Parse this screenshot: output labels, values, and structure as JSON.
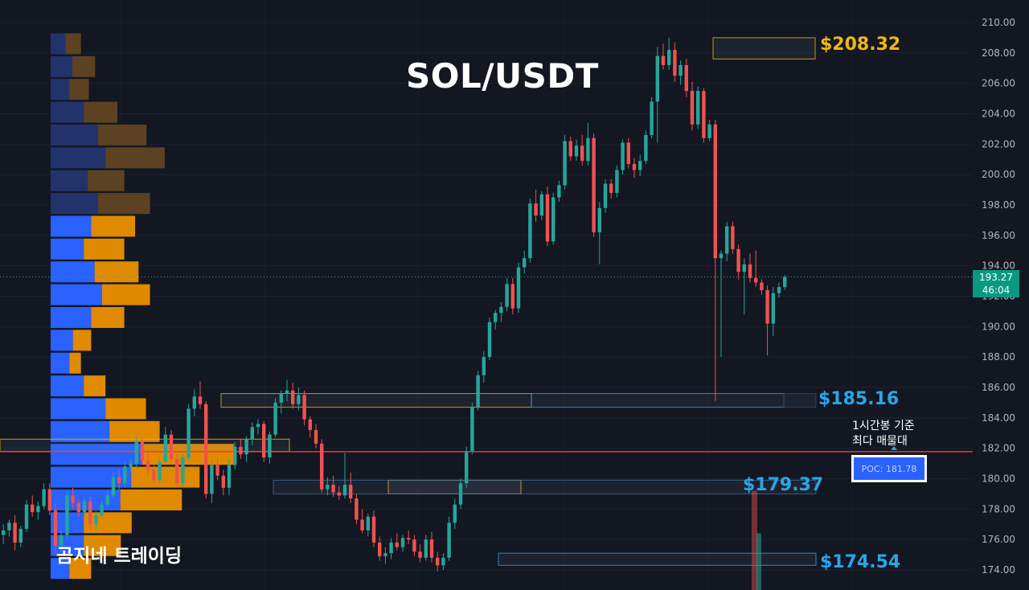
{
  "title": "SOL/USDT",
  "brand": "곰지네 트레이딩",
  "colors": {
    "background": "#131722",
    "up": "#26a69a",
    "down": "#ef5350",
    "vp_buy": "#2962ff",
    "vp_sell": "#e08a00",
    "poc_line": "#e53935",
    "gold": "#f0b90b",
    "blue": "#2aa5e8"
  },
  "levels": [
    {
      "label": "$208.32",
      "price": 208.32,
      "color": "gold"
    },
    {
      "label": "$185.16",
      "price": 185.16,
      "color": "blue"
    },
    {
      "label": "$179.37",
      "price": 179.37,
      "color": "blue"
    },
    {
      "label": "$174.54",
      "price": 174.54,
      "color": "blue"
    }
  ],
  "poc": {
    "note_line1": "1시간봉 기준",
    "note_line2": "최다 매물대",
    "label": "POC: 181.78",
    "price": 181.78
  },
  "current": {
    "price": "193.27",
    "countdown": "46:04",
    "value": 193.27
  },
  "chart_data": {
    "type": "candlestick",
    "title": "SOL/USDT",
    "y_axis": {
      "ylim": [
        173.2,
        211
      ],
      "ticks": [
        "174.00",
        "176.00",
        "178.00",
        "180.00",
        "182.00",
        "184.00",
        "186.00",
        "188.00",
        "190.00",
        "192.00",
        "194.00",
        "196.00",
        "198.00",
        "200.00",
        "202.00",
        "204.00",
        "206.00",
        "208.00",
        "210.00"
      ]
    },
    "candles": [
      [
        176.3,
        177.0,
        175.7,
        176.6
      ],
      [
        176.6,
        177.3,
        176.2,
        177.1
      ],
      [
        177.1,
        177.6,
        175.3,
        175.8
      ],
      [
        175.8,
        176.9,
        175.5,
        176.7
      ],
      [
        176.7,
        178.6,
        176.5,
        178.3
      ],
      [
        178.3,
        178.9,
        177.5,
        177.8
      ],
      [
        177.8,
        178.5,
        177.3,
        178.2
      ],
      [
        178.2,
        179.7,
        178.0,
        179.3
      ],
      [
        179.3,
        179.7,
        177.6,
        177.9
      ],
      [
        177.9,
        178.4,
        175.1,
        175.6
      ],
      [
        175.6,
        176.6,
        175.2,
        176.3
      ],
      [
        176.3,
        179.2,
        176.1,
        178.9
      ],
      [
        178.9,
        179.4,
        178.0,
        178.4
      ],
      [
        178.4,
        178.6,
        177.5,
        177.8
      ],
      [
        177.8,
        178.7,
        177.6,
        178.5
      ],
      [
        178.5,
        178.8,
        176.6,
        177.0
      ],
      [
        177.0,
        177.9,
        176.6,
        177.6
      ],
      [
        177.6,
        178.6,
        177.4,
        178.3
      ],
      [
        178.3,
        179.2,
        178.1,
        178.9
      ],
      [
        178.9,
        180.4,
        178.7,
        180.1
      ],
      [
        180.1,
        180.6,
        179.3,
        179.7
      ],
      [
        179.7,
        181.1,
        179.4,
        180.8
      ],
      [
        180.8,
        181.3,
        180.5,
        181.0
      ],
      [
        181.0,
        182.8,
        180.7,
        182.4
      ],
      [
        182.4,
        182.7,
        180.9,
        181.2
      ],
      [
        181.2,
        181.7,
        180.2,
        180.6
      ],
      [
        180.6,
        180.9,
        179.6,
        179.9
      ],
      [
        179.9,
        181.3,
        179.7,
        181.1
      ],
      [
        181.1,
        183.4,
        180.9,
        182.9
      ],
      [
        182.9,
        183.2,
        181.0,
        181.3
      ],
      [
        181.3,
        181.6,
        179.4,
        179.7
      ],
      [
        179.7,
        181.6,
        179.5,
        181.4
      ],
      [
        181.4,
        184.9,
        181.2,
        184.6
      ],
      [
        184.6,
        185.9,
        184.1,
        185.4
      ],
      [
        185.4,
        186.4,
        184.6,
        184.9
      ],
      [
        184.9,
        185.1,
        178.7,
        179.0
      ],
      [
        179.0,
        181.2,
        178.4,
        180.9
      ],
      [
        180.9,
        181.4,
        179.9,
        180.2
      ],
      [
        180.2,
        180.6,
        178.9,
        179.4
      ],
      [
        179.4,
        181.3,
        178.9,
        180.9
      ],
      [
        180.9,
        182.4,
        180.6,
        182.1
      ],
      [
        182.1,
        182.6,
        181.3,
        181.6
      ],
      [
        181.6,
        182.8,
        181.1,
        182.6
      ],
      [
        182.6,
        183.7,
        182.2,
        183.4
      ],
      [
        183.4,
        183.9,
        182.9,
        183.6
      ],
      [
        183.6,
        183.8,
        181.1,
        181.4
      ],
      [
        181.4,
        183.1,
        181.0,
        182.9
      ],
      [
        182.9,
        185.3,
        182.7,
        185.0
      ],
      [
        185.0,
        185.8,
        184.3,
        185.6
      ],
      [
        185.6,
        186.5,
        185.1,
        185.8
      ],
      [
        185.8,
        186.3,
        184.6,
        184.9
      ],
      [
        184.9,
        186.0,
        184.5,
        185.5
      ],
      [
        185.5,
        185.8,
        183.5,
        183.9
      ],
      [
        183.9,
        184.1,
        182.7,
        183.2
      ],
      [
        183.2,
        183.6,
        182.0,
        182.3
      ],
      [
        182.3,
        182.6,
        179.1,
        179.3
      ],
      [
        179.3,
        180.1,
        178.9,
        179.6
      ],
      [
        179.6,
        180.2,
        178.8,
        179.1
      ],
      [
        179.1,
        179.5,
        178.6,
        178.9
      ],
      [
        178.9,
        181.7,
        178.7,
        179.6
      ],
      [
        179.6,
        180.4,
        178.4,
        178.7
      ],
      [
        178.7,
        179.0,
        177.0,
        177.3
      ],
      [
        177.3,
        178.0,
        176.4,
        176.6
      ],
      [
        176.6,
        177.7,
        176.2,
        177.5
      ],
      [
        177.5,
        177.9,
        175.5,
        175.8
      ],
      [
        175.8,
        176.2,
        174.6,
        174.9
      ],
      [
        174.9,
        175.5,
        174.4,
        175.1
      ],
      [
        175.1,
        176.1,
        174.7,
        175.8
      ],
      [
        175.8,
        176.4,
        175.3,
        175.5
      ],
      [
        175.5,
        176.3,
        175.2,
        176.1
      ],
      [
        176.1,
        176.6,
        175.7,
        176.0
      ],
      [
        176.0,
        176.3,
        174.9,
        175.2
      ],
      [
        175.2,
        175.7,
        174.5,
        174.8
      ],
      [
        174.8,
        176.3,
        174.6,
        176.0
      ],
      [
        176.0,
        176.5,
        174.5,
        174.8
      ],
      [
        174.8,
        175.2,
        173.9,
        174.3
      ],
      [
        174.3,
        175.1,
        174.0,
        174.8
      ],
      [
        174.8,
        177.5,
        174.6,
        177.1
      ],
      [
        177.1,
        178.7,
        176.7,
        178.3
      ],
      [
        178.3,
        180.0,
        178.0,
        179.7
      ],
      [
        179.7,
        182.1,
        179.4,
        181.8
      ],
      [
        181.8,
        185.0,
        181.6,
        184.7
      ],
      [
        184.7,
        187.1,
        184.5,
        186.8
      ],
      [
        186.8,
        188.4,
        186.3,
        188.0
      ],
      [
        188.0,
        190.6,
        187.8,
        190.3
      ],
      [
        190.3,
        191.1,
        189.8,
        190.9
      ],
      [
        190.9,
        191.6,
        190.3,
        191.3
      ],
      [
        191.3,
        193.2,
        191.0,
        192.8
      ],
      [
        192.8,
        193.2,
        190.8,
        191.2
      ],
      [
        191.2,
        194.2,
        190.9,
        193.9
      ],
      [
        193.9,
        195.0,
        193.5,
        194.5
      ],
      [
        194.5,
        198.4,
        194.2,
        198.1
      ],
      [
        198.1,
        199.0,
        196.9,
        197.3
      ],
      [
        197.3,
        198.9,
        197.0,
        198.7
      ],
      [
        198.7,
        199.2,
        195.3,
        195.6
      ],
      [
        195.6,
        198.8,
        195.4,
        198.5
      ],
      [
        198.5,
        199.6,
        198.2,
        199.3
      ],
      [
        199.3,
        202.6,
        199.0,
        202.2
      ],
      [
        202.2,
        202.5,
        200.9,
        201.2
      ],
      [
        201.2,
        202.3,
        200.9,
        201.9
      ],
      [
        201.9,
        202.6,
        200.6,
        200.9
      ],
      [
        200.9,
        203.4,
        200.6,
        202.4
      ],
      [
        202.4,
        202.7,
        195.9,
        196.2
      ],
      [
        196.2,
        198.2,
        194.1,
        197.8
      ],
      [
        197.8,
        199.7,
        197.5,
        199.4
      ],
      [
        199.4,
        199.7,
        198.4,
        198.8
      ],
      [
        198.8,
        200.6,
        198.5,
        200.3
      ],
      [
        200.3,
        202.3,
        200.0,
        202.1
      ],
      [
        202.1,
        202.4,
        200.4,
        200.7
      ],
      [
        200.7,
        201.1,
        199.8,
        200.3
      ],
      [
        200.3,
        201.3,
        199.9,
        200.9
      ],
      [
        200.9,
        202.9,
        200.7,
        202.6
      ],
      [
        202.6,
        205.1,
        202.4,
        204.8
      ],
      [
        204.8,
        208.4,
        202.1,
        207.8
      ],
      [
        207.8,
        208.6,
        206.9,
        207.2
      ],
      [
        207.2,
        209.0,
        206.9,
        208.2
      ],
      [
        208.2,
        208.7,
        206.1,
        206.5
      ],
      [
        206.5,
        207.5,
        205.9,
        207.2
      ],
      [
        207.2,
        207.6,
        205.1,
        205.5
      ],
      [
        205.5,
        206.1,
        202.9,
        203.3
      ],
      [
        203.3,
        205.8,
        203.0,
        205.5
      ],
      [
        205.5,
        205.7,
        202.1,
        202.4
      ],
      [
        202.4,
        203.6,
        202.2,
        203.3
      ],
      [
        203.3,
        203.6,
        185.1,
        194.5
      ],
      [
        194.5,
        195.0,
        188.0,
        194.8
      ],
      [
        194.8,
        196.9,
        194.3,
        196.6
      ],
      [
        196.6,
        196.9,
        194.8,
        195.1
      ],
      [
        195.1,
        195.4,
        193.1,
        193.6
      ],
      [
        193.6,
        194.5,
        190.8,
        194.1
      ],
      [
        194.1,
        194.8,
        192.9,
        193.2
      ],
      [
        193.2,
        195.0,
        192.6,
        192.9
      ],
      [
        192.9,
        193.1,
        192.1,
        192.4
      ],
      [
        192.4,
        192.7,
        188.1,
        190.2
      ],
      [
        190.2,
        192.6,
        189.4,
        192.2
      ],
      [
        192.2,
        192.9,
        191.9,
        192.6
      ],
      [
        192.6,
        193.4,
        192.4,
        193.27
      ]
    ],
    "volume_profile": {
      "levels": [
        {
          "price": 208.6,
          "buy": 26,
          "sell": 27
        },
        {
          "price": 207.1,
          "buy": 38,
          "sell": 40
        },
        {
          "price": 205.6,
          "buy": 33,
          "sell": 34
        },
        {
          "price": 204.1,
          "buy": 58,
          "sell": 59
        },
        {
          "price": 202.6,
          "buy": 83,
          "sell": 85
        },
        {
          "price": 201.1,
          "buy": 96,
          "sell": 104
        },
        {
          "price": 199.6,
          "buy": 65,
          "sell": 64
        },
        {
          "price": 198.1,
          "buy": 83,
          "sell": 91
        },
        {
          "price": 196.6,
          "buy": 71,
          "sell": 77
        },
        {
          "price": 195.1,
          "buy": 58,
          "sell": 71
        },
        {
          "price": 193.6,
          "buy": 77,
          "sell": 77
        },
        {
          "price": 192.1,
          "buy": 90,
          "sell": 84
        },
        {
          "price": 190.6,
          "buy": 71,
          "sell": 58
        },
        {
          "price": 189.1,
          "buy": 39,
          "sell": 32
        },
        {
          "price": 187.6,
          "buy": 33,
          "sell": 20
        },
        {
          "price": 186.1,
          "buy": 58,
          "sell": 38
        },
        {
          "price": 184.6,
          "buy": 96,
          "sell": 71
        },
        {
          "price": 183.1,
          "buy": 103,
          "sell": 88
        },
        {
          "price": 181.6,
          "buy": 160,
          "sell": 161
        },
        {
          "price": 180.1,
          "buy": 141,
          "sell": 120
        },
        {
          "price": 178.6,
          "buy": 122,
          "sell": 108
        },
        {
          "price": 177.1,
          "buy": 58,
          "sell": 84
        },
        {
          "price": 175.6,
          "buy": 58,
          "sell": 65
        },
        {
          "price": 174.1,
          "buy": 33,
          "sell": 38
        }
      ]
    }
  }
}
